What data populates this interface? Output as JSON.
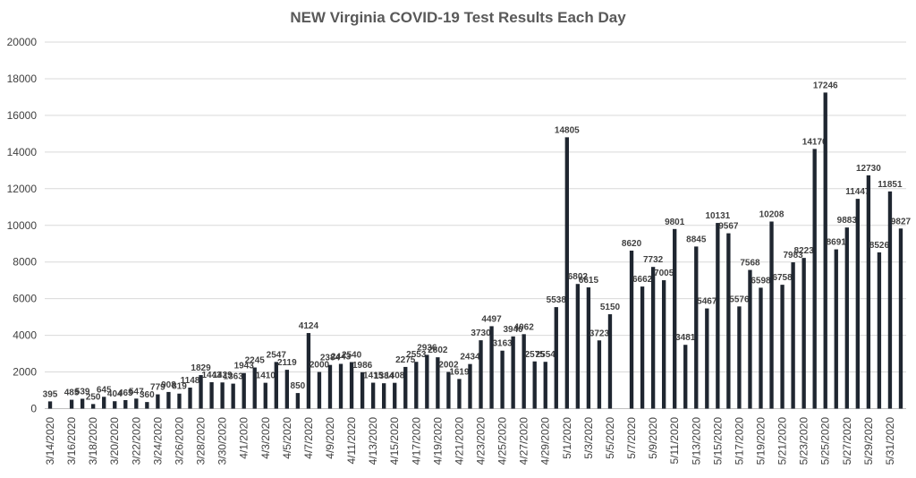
{
  "chart_data": {
    "type": "bar",
    "title": "NEW Virginia COVID-19 Test Results Each Day",
    "xlabel": "",
    "ylabel": "",
    "ylim": [
      0,
      20000
    ],
    "y_ticks": [
      "0",
      "2000",
      "4000",
      "6000",
      "8000",
      "10000",
      "12000",
      "14000",
      "16000",
      "18000",
      "20000"
    ],
    "grid": true,
    "legend": "none",
    "colors": {
      "bar": "#1f2630",
      "grid": "#d9d9d9",
      "label": "#404040",
      "axis": "#bfbfbf"
    },
    "categories": [
      "3/14/2020",
      "3/15/2020",
      "3/16/2020",
      "3/17/2020",
      "3/18/2020",
      "3/19/2020",
      "3/20/2020",
      "3/21/2020",
      "3/22/2020",
      "3/23/2020",
      "3/24/2020",
      "3/25/2020",
      "3/26/2020",
      "3/27/2020",
      "3/28/2020",
      "3/29/2020",
      "3/30/2020",
      "3/31/2020",
      "4/1/2020",
      "4/2/2020",
      "4/3/2020",
      "4/4/2020",
      "4/5/2020",
      "4/6/2020",
      "4/7/2020",
      "4/8/2020",
      "4/9/2020",
      "4/10/2020",
      "4/11/2020",
      "4/12/2020",
      "4/13/2020",
      "4/14/2020",
      "4/15/2020",
      "4/16/2020",
      "4/17/2020",
      "4/18/2020",
      "4/19/2020",
      "4/20/2020",
      "4/21/2020",
      "4/22/2020",
      "4/23/2020",
      "4/24/2020",
      "4/25/2020",
      "4/26/2020",
      "4/27/2020",
      "4/28/2020",
      "4/29/2020",
      "4/30/2020",
      "5/1/2020",
      "5/2/2020",
      "5/3/2020",
      "5/4/2020",
      "5/5/2020",
      "5/6/2020",
      "5/7/2020",
      "5/8/2020",
      "5/9/2020",
      "5/10/2020",
      "5/11/2020",
      "5/12/2020",
      "5/13/2020",
      "5/14/2020",
      "5/15/2020",
      "5/16/2020",
      "5/17/2020",
      "5/18/2020",
      "5/19/2020",
      "5/20/2020",
      "5/21/2020",
      "5/22/2020",
      "5/23/2020",
      "5/24/2020",
      "5/25/2020",
      "5/26/2020",
      "5/27/2020",
      "5/28/2020",
      "5/29/2020",
      "5/30/2020",
      "5/31/2020",
      "6/1/2020"
    ],
    "values": [
      395,
      null,
      485,
      539,
      250,
      645,
      404,
      465,
      547,
      360,
      779,
      908,
      819,
      1148,
      1829,
      1443,
      1429,
      1363,
      1943,
      2245,
      1410,
      2547,
      2119,
      850,
      4124,
      2000,
      2384,
      2443,
      2540,
      1986,
      1415,
      1384,
      1408,
      2275,
      2553,
      2936,
      2802,
      2002,
      1619,
      2434,
      3730,
      4497,
      3163,
      3940,
      4062,
      2575,
      2554,
      5538,
      14805,
      6802,
      6615,
      3723,
      5150,
      null,
      8620,
      6662,
      7732,
      7005,
      9801,
      3481,
      8845,
      5467,
      10131,
      9567,
      5576,
      7568,
      6598,
      10208,
      6758,
      7983,
      8223,
      14170,
      17246,
      8691,
      9883,
      11447,
      12730,
      8526,
      11851,
      9827
    ],
    "labels": [
      "395",
      null,
      "485",
      "539",
      "250",
      "645",
      "404",
      "465",
      "547",
      "360",
      "779",
      "908",
      "819",
      "1148",
      "1829",
      "1443",
      "1429",
      "1363",
      "1943",
      "2245",
      "1410",
      "2547",
      "2119",
      "850",
      "4124",
      "2000",
      "2384",
      "2443",
      "2540",
      "1986",
      "1415",
      "1384",
      "1408",
      "2275",
      "2553",
      "2936",
      "2802",
      "2002",
      "1619",
      "2434",
      "3730",
      "4497",
      "3163",
      "3940",
      "4062",
      "2575",
      "2554",
      "5538",
      "14805",
      "6802",
      "6615",
      "3723",
      "5150",
      null,
      "8620",
      "6662",
      "7732",
      "7005",
      "9801",
      "3481",
      "8845",
      "5467",
      "10131",
      "9567",
      "5576",
      "7568",
      "6598",
      "10208",
      "6758",
      "7983",
      "8223",
      "14170",
      "17246",
      "8691",
      "9883",
      "11447",
      "12730",
      "8526",
      "11851",
      "9827"
    ],
    "tick_labels": [
      "3/14/2020",
      "3/16/2020",
      "3/18/2020",
      "3/20/2020",
      "3/22/2020",
      "3/24/2020",
      "3/26/2020",
      "3/28/2020",
      "3/30/2020",
      "4/1/2020",
      "4/3/2020",
      "4/5/2020",
      "4/7/2020",
      "4/9/2020",
      "4/11/2020",
      "4/13/2020",
      "4/15/2020",
      "4/17/2020",
      "4/19/2020",
      "4/21/2020",
      "4/23/2020",
      "4/25/2020",
      "4/27/2020",
      "4/29/2020",
      "5/1/2020",
      "5/3/2020",
      "5/5/2020",
      "5/7/2020",
      "5/9/2020",
      "5/11/2020",
      "5/13/2020",
      "5/15/2020",
      "5/17/2020",
      "5/19/2020",
      "5/21/2020",
      "5/23/2020",
      "5/25/2020",
      "5/27/2020",
      "5/29/2020",
      "5/31/2020"
    ]
  }
}
